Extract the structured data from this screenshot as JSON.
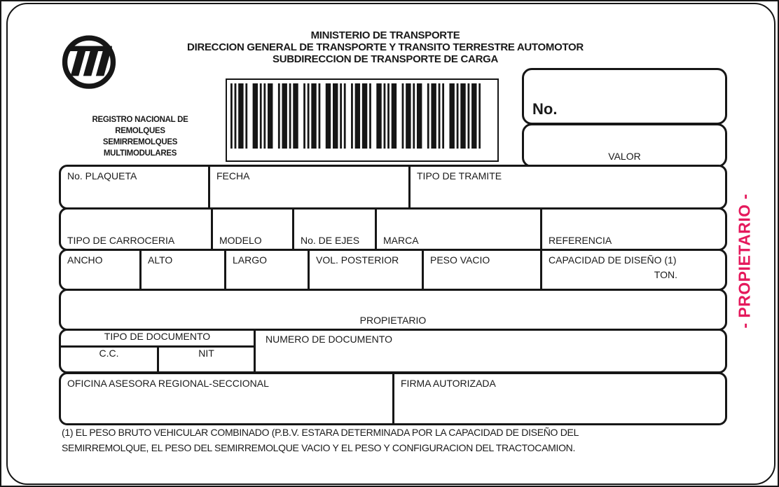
{
  "colors": {
    "ink": "#1a1a1a",
    "accent_pink": "#e5195c"
  },
  "header": {
    "line1": "MINISTERIO DE TRANSPORTE",
    "line2": "DIRECCION GENERAL DE TRANSPORTE Y TRANSITO TERRESTRE AUTOMOTOR",
    "line3": "SUBDIRECCION DE TRANSPORTE DE CARGA",
    "registry_lines": [
      "REGISTRO NACIONAL DE",
      "REMOLQUES",
      "SEMIRREMOLQUES",
      "MULTIMODULARES"
    ],
    "logo_icon": "ministerio-transporte-logo",
    "barcode_icon": "barcode"
  },
  "number_box": {
    "label": "No.",
    "value": ""
  },
  "valor_box": {
    "label": "VALOR",
    "value": ""
  },
  "row1": {
    "plaqueta": "No. PLAQUETA",
    "fecha": "FECHA",
    "tramite": "TIPO DE TRAMITE"
  },
  "row2": {
    "carroceria": "TIPO DE CARROCERIA",
    "modelo": "MODELO",
    "ejes": "No. DE EJES",
    "marca": "MARCA",
    "referencia": "REFERENCIA"
  },
  "row3": {
    "ancho": "ANCHO",
    "alto": "ALTO",
    "largo": "LARGO",
    "vol": "VOL. POSTERIOR",
    "peso": "PESO VACIO",
    "capacidad": "CAPACIDAD DE DISEÑO (1)",
    "ton": "TON."
  },
  "propietario_label": "PROPIETARIO",
  "documento": {
    "tipo": "TIPO DE DOCUMENTO",
    "cc": "C.C.",
    "nit": "NIT",
    "numero": "NUMERO DE DOCUMENTO"
  },
  "oficina_label": "OFICINA ASESORA REGIONAL-SECCIONAL",
  "firma_label": "FIRMA AUTORIZADA",
  "side_label": "- PROPIETARIO -",
  "footnote": {
    "line1": "(1) EL PESO BRUTO VEHICULAR COMBINADO (P.B.V. ESTARA DETERMINADA POR LA CAPACIDAD DE DISEÑO DEL",
    "line2": "SEMIRREMOLQUE, EL PESO DEL SEMIRREMOLQUE VACIO Y EL PESO Y CONFIGURACION DEL TRACTOCAMION."
  }
}
